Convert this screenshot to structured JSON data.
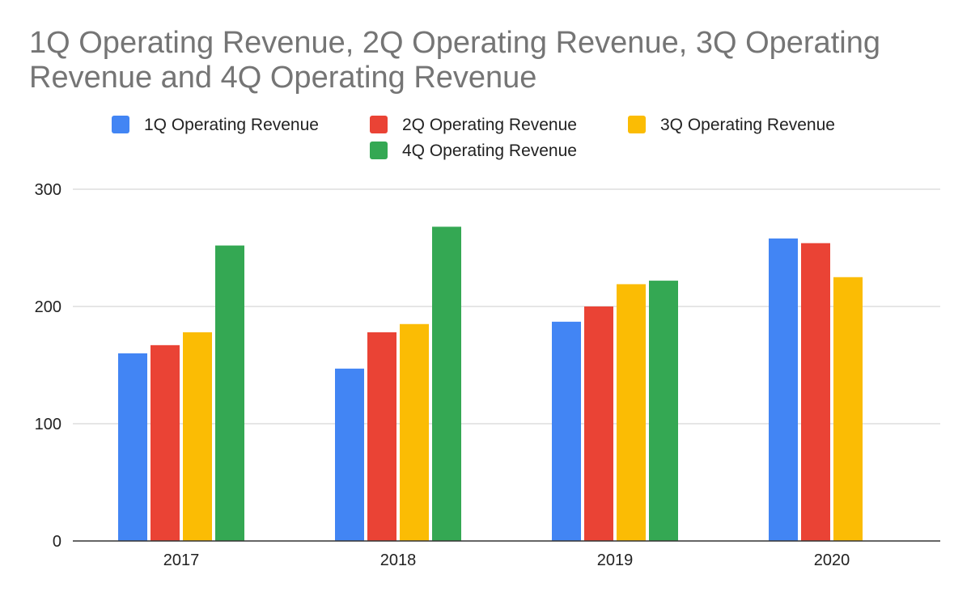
{
  "chart_data": {
    "type": "bar",
    "title": "1Q Operating Revenue, 2Q Operating Revenue, 3Q Operating Revenue and 4Q Operating Revenue",
    "xlabel": "",
    "ylabel": "",
    "categories": [
      "2017",
      "2018",
      "2019",
      "2020"
    ],
    "series": [
      {
        "name": "1Q Operating Revenue",
        "color": "#4285F4",
        "values": [
          160,
          147,
          187,
          258
        ]
      },
      {
        "name": "2Q Operating Revenue",
        "color": "#EA4335",
        "values": [
          167,
          178,
          200,
          254
        ]
      },
      {
        "name": "3Q Operating Revenue",
        "color": "#FBBC04",
        "values": [
          178,
          185,
          219,
          225
        ]
      },
      {
        "name": "4Q Operating Revenue",
        "color": "#34A853",
        "values": [
          252,
          268,
          222,
          null
        ]
      }
    ],
    "ylim": [
      0,
      300
    ],
    "yticks": [
      0,
      100,
      200,
      300
    ],
    "grid": true,
    "legend_position": "top"
  }
}
